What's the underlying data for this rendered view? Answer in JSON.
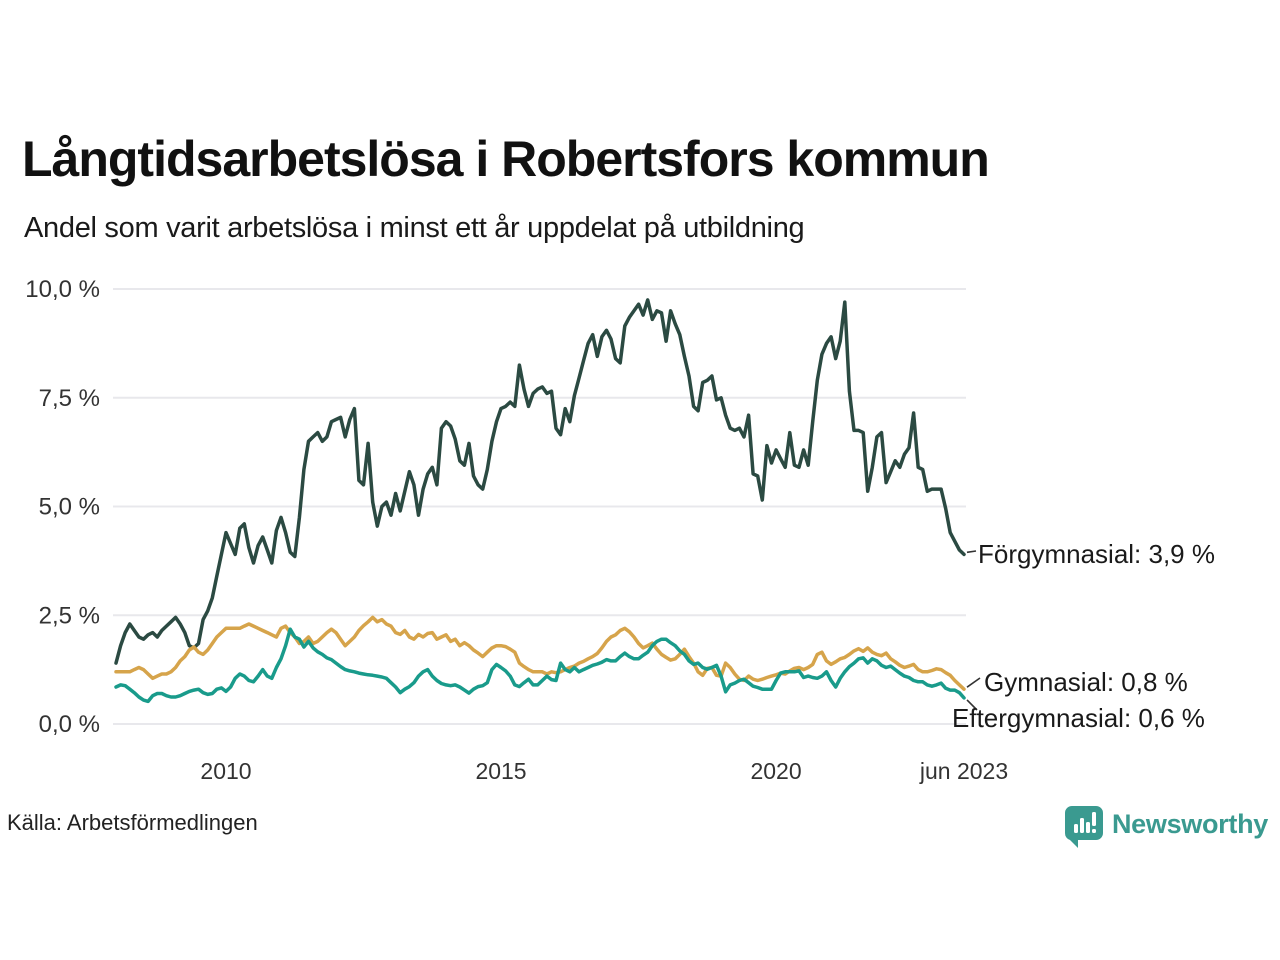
{
  "header": {
    "title": "Långtidsarbetslösa i Robertsfors kommun",
    "subtitle": "Andel som varit arbetslösa i minst ett år uppdelat på utbildning"
  },
  "footer": {
    "source": "Källa: Arbetsförmedlingen",
    "brand": "Newsworthy"
  },
  "colors": {
    "forgymnasial": "#2b4a42",
    "gymnasial": "#d6a44b",
    "eftergymnasial": "#199b8b",
    "gridline": "#e8e8ec",
    "tick_text": "#333333",
    "brand_teal": "#3a9a90",
    "connector": "#333333"
  },
  "chart_data": {
    "type": "line",
    "title": "Långtidsarbetslösa i Robertsfors kommun",
    "subtitle": "Andel som varit arbetslösa i minst ett år uppdelat på utbildning",
    "x_unit": "month",
    "x_start_year": 2008.0,
    "x_end_year": 2023.4167,
    "ylim": [
      0,
      10
    ],
    "grid": true,
    "legend_position": "end-of-line-labels",
    "y_ticks": [
      {
        "label": "0,0 %",
        "value": 0
      },
      {
        "label": "2,5 %",
        "value": 2.5
      },
      {
        "label": "5,0 %",
        "value": 5
      },
      {
        "label": "7,5 %",
        "value": 7.5
      },
      {
        "label": "10,0 %",
        "value": 10
      }
    ],
    "x_ticks": [
      {
        "label": "2010",
        "year": 2010
      },
      {
        "label": "2015",
        "year": 2015
      },
      {
        "label": "2020",
        "year": 2020
      },
      {
        "label": "jun 2023",
        "year": 2023.4167
      }
    ],
    "series": [
      {
        "name": "Förgymnasial",
        "end_label": "Förgymnasial: 3,9 %",
        "end_value": 3.9,
        "color": "#2b4a42",
        "values": [
          1.4,
          1.8,
          2.1,
          2.3,
          2.15,
          2.0,
          1.95,
          2.05,
          2.1,
          2.0,
          2.15,
          2.25,
          2.35,
          2.45,
          2.3,
          2.1,
          1.8,
          1.75,
          1.85,
          2.4,
          2.6,
          2.9,
          3.4,
          3.9,
          4.4,
          4.15,
          3.9,
          4.5,
          4.6,
          4.05,
          3.7,
          4.1,
          4.3,
          4.0,
          3.7,
          4.45,
          4.75,
          4.4,
          3.95,
          3.85,
          4.75,
          5.85,
          6.5,
          6.6,
          6.7,
          6.5,
          6.6,
          6.95,
          7.0,
          7.05,
          6.6,
          7.0,
          7.25,
          5.6,
          5.5,
          6.45,
          5.1,
          4.55,
          5.0,
          5.1,
          4.8,
          5.3,
          4.9,
          5.35,
          5.8,
          5.5,
          4.8,
          5.4,
          5.75,
          5.9,
          5.5,
          6.8,
          6.95,
          6.85,
          6.55,
          6.05,
          5.95,
          6.45,
          5.7,
          5.5,
          5.4,
          5.85,
          6.5,
          6.95,
          7.25,
          7.3,
          7.4,
          7.3,
          8.25,
          7.7,
          7.3,
          7.6,
          7.7,
          7.75,
          7.6,
          7.65,
          6.8,
          6.65,
          7.25,
          6.95,
          7.55,
          7.95,
          8.35,
          8.75,
          8.95,
          8.45,
          8.9,
          9.05,
          8.85,
          8.4,
          8.3,
          9.15,
          9.35,
          9.5,
          9.65,
          9.4,
          9.75,
          9.3,
          9.5,
          9.45,
          8.8,
          9.5,
          9.2,
          8.95,
          8.45,
          8.0,
          7.3,
          7.2,
          7.85,
          7.9,
          8.0,
          7.45,
          7.5,
          7.1,
          6.8,
          6.75,
          6.8,
          6.6,
          7.1,
          5.75,
          5.7,
          5.15,
          6.4,
          6.0,
          6.3,
          6.1,
          5.9,
          6.7,
          5.95,
          5.9,
          6.3,
          5.95,
          6.95,
          7.9,
          8.5,
          8.75,
          8.9,
          8.4,
          8.8,
          9.7,
          7.65,
          6.75,
          6.75,
          6.7,
          5.35,
          5.9,
          6.6,
          6.7,
          5.55,
          5.8,
          6.05,
          5.9,
          6.2,
          6.35,
          7.15,
          5.9,
          5.85,
          5.35,
          5.4,
          5.4,
          5.4,
          4.95,
          4.4,
          4.2,
          4.0,
          3.9
        ]
      },
      {
        "name": "Gymnasial",
        "end_label": "Gymnasial: 0,8 %",
        "end_value": 0.8,
        "color": "#d6a44b",
        "values": [
          1.2,
          1.2,
          1.2,
          1.2,
          1.25,
          1.3,
          1.25,
          1.15,
          1.05,
          1.1,
          1.15,
          1.15,
          1.2,
          1.3,
          1.45,
          1.55,
          1.7,
          1.77,
          1.65,
          1.6,
          1.7,
          1.85,
          2.0,
          2.1,
          2.2,
          2.2,
          2.2,
          2.2,
          2.25,
          2.3,
          2.25,
          2.2,
          2.15,
          2.1,
          2.05,
          2.0,
          2.2,
          2.25,
          2.1,
          2.0,
          1.85,
          1.9,
          2.0,
          1.85,
          1.9,
          2.0,
          2.1,
          2.18,
          2.1,
          1.95,
          1.8,
          1.9,
          2.0,
          2.15,
          2.26,
          2.35,
          2.45,
          2.35,
          2.4,
          2.3,
          2.25,
          2.1,
          2.06,
          2.15,
          2.0,
          1.95,
          2.06,
          2.0,
          2.08,
          2.1,
          1.95,
          2.0,
          2.05,
          1.9,
          1.95,
          1.8,
          1.87,
          1.8,
          1.7,
          1.63,
          1.55,
          1.65,
          1.75,
          1.8,
          1.8,
          1.78,
          1.72,
          1.65,
          1.4,
          1.32,
          1.25,
          1.2,
          1.2,
          1.2,
          1.15,
          1.2,
          1.18,
          1.2,
          1.25,
          1.3,
          1.33,
          1.4,
          1.44,
          1.5,
          1.55,
          1.62,
          1.75,
          1.9,
          2.0,
          2.05,
          2.15,
          2.2,
          2.12,
          2.0,
          1.85,
          1.75,
          1.8,
          1.86,
          1.72,
          1.6,
          1.53,
          1.47,
          1.5,
          1.6,
          1.72,
          1.55,
          1.4,
          1.2,
          1.12,
          1.28,
          1.3,
          1.12,
          1.1,
          1.4,
          1.3,
          1.15,
          1.03,
          1.0,
          1.1,
          1.03,
          1.0,
          1.03,
          1.07,
          1.1,
          1.13,
          1.17,
          1.15,
          1.22,
          1.28,
          1.3,
          1.25,
          1.3,
          1.37,
          1.6,
          1.65,
          1.45,
          1.37,
          1.43,
          1.5,
          1.53,
          1.6,
          1.68,
          1.73,
          1.67,
          1.75,
          1.65,
          1.6,
          1.57,
          1.63,
          1.5,
          1.43,
          1.35,
          1.3,
          1.33,
          1.37,
          1.25,
          1.2,
          1.2,
          1.23,
          1.27,
          1.25,
          1.18,
          1.12,
          1.0,
          0.9,
          0.8
        ]
      },
      {
        "name": "Eftergymnasial",
        "end_label": "Eftergymnasial: 0,6 %",
        "end_value": 0.6,
        "color": "#199b8b",
        "values": [
          0.85,
          0.9,
          0.88,
          0.8,
          0.72,
          0.62,
          0.55,
          0.52,
          0.65,
          0.7,
          0.7,
          0.65,
          0.62,
          0.62,
          0.65,
          0.7,
          0.75,
          0.78,
          0.8,
          0.72,
          0.68,
          0.7,
          0.8,
          0.83,
          0.75,
          0.85,
          1.05,
          1.15,
          1.1,
          1.0,
          0.97,
          1.1,
          1.25,
          1.1,
          1.05,
          1.3,
          1.5,
          1.8,
          2.18,
          2.0,
          1.95,
          1.77,
          1.9,
          1.75,
          1.66,
          1.6,
          1.52,
          1.48,
          1.4,
          1.32,
          1.25,
          1.22,
          1.2,
          1.17,
          1.15,
          1.13,
          1.12,
          1.1,
          1.08,
          1.05,
          0.95,
          0.85,
          0.72,
          0.8,
          0.86,
          0.95,
          1.1,
          1.2,
          1.25,
          1.1,
          1.0,
          0.93,
          0.9,
          0.88,
          0.9,
          0.85,
          0.78,
          0.71,
          0.8,
          0.86,
          0.88,
          0.95,
          1.25,
          1.37,
          1.3,
          1.22,
          1.1,
          0.9,
          0.86,
          0.95,
          1.03,
          0.9,
          0.9,
          1.0,
          1.1,
          1.02,
          1.0,
          1.4,
          1.25,
          1.2,
          1.3,
          1.2,
          1.25,
          1.3,
          1.35,
          1.38,
          1.42,
          1.48,
          1.45,
          1.45,
          1.55,
          1.63,
          1.55,
          1.5,
          1.5,
          1.58,
          1.65,
          1.8,
          1.9,
          1.95,
          1.95,
          1.87,
          1.8,
          1.68,
          1.6,
          1.45,
          1.37,
          1.4,
          1.3,
          1.26,
          1.3,
          1.35,
          1.1,
          0.74,
          0.9,
          0.94,
          1.0,
          1.03,
          0.95,
          0.87,
          0.84,
          0.8,
          0.8,
          0.8,
          1.0,
          1.17,
          1.2,
          1.2,
          1.2,
          1.22,
          1.07,
          1.1,
          1.07,
          1.05,
          1.1,
          1.2,
          1.0,
          0.85,
          1.05,
          1.2,
          1.32,
          1.4,
          1.5,
          1.52,
          1.4,
          1.5,
          1.45,
          1.35,
          1.3,
          1.33,
          1.25,
          1.17,
          1.1,
          1.07,
          1.0,
          0.97,
          0.97,
          0.9,
          0.87,
          0.9,
          0.94,
          0.82,
          0.78,
          0.78,
          0.72,
          0.6
        ]
      }
    ]
  }
}
